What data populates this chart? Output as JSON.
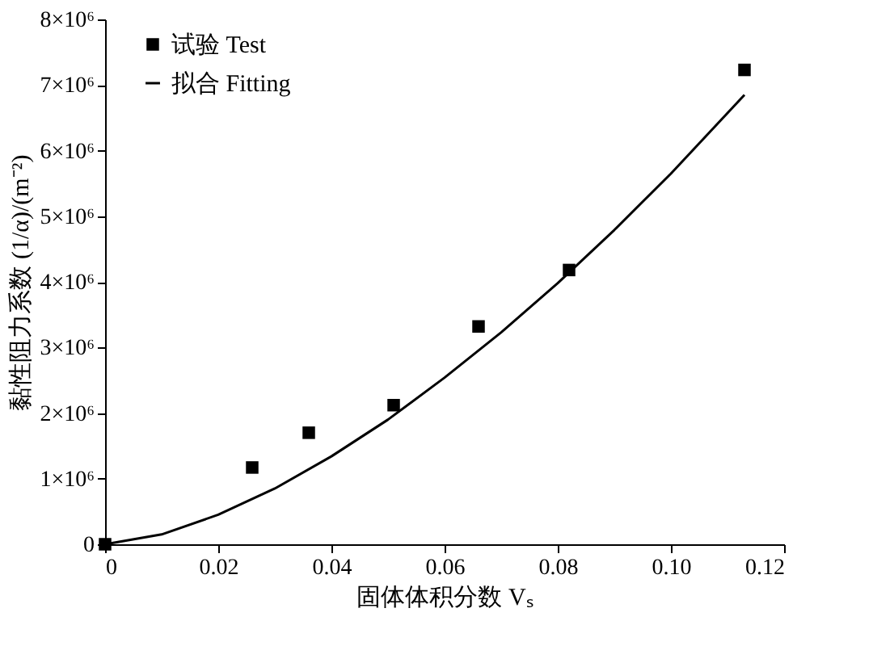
{
  "chart_data": {
    "type": "scatter",
    "xlabel": "固体体积分数 Vₛ",
    "ylabel": "黏性阻力系数 (1/α)/(m⁻²)",
    "xlim": [
      0,
      0.12
    ],
    "xticks": [
      0,
      0.02,
      0.04,
      0.06,
      0.08,
      {
        "value": 0.1,
        "label": "0.10"
      },
      0.12
    ],
    "ylim": [
      0,
      8000000
    ],
    "yticks": [
      0,
      {
        "value": 1000000,
        "label": "1×10⁶"
      },
      {
        "value": 2000000,
        "label": "2×10⁶"
      },
      {
        "value": 3000000,
        "label": "3×10⁶"
      },
      {
        "value": 4000000,
        "label": "4×10⁶"
      },
      {
        "value": 5000000,
        "label": "5×10⁶"
      },
      {
        "value": 6000000,
        "label": "6×10⁶"
      },
      {
        "value": 7000000,
        "label": "7×10⁶"
      },
      {
        "value": 8000000,
        "label": "8×10⁶"
      }
    ],
    "grid": false,
    "legend": "top left",
    "series": [
      {
        "name": "试验 Test",
        "marker": "square",
        "color": "#000000",
        "x": [
          0,
          0.026,
          0.036,
          0.051,
          0.066,
          0.082,
          0.113
        ],
        "values": [
          0,
          1170000,
          1700000,
          2120000,
          3320000,
          4180000,
          7230000
        ]
      },
      {
        "name": "拟合 Fitting",
        "type": "line",
        "marker": "none",
        "line_style": "solid",
        "color": "#000000",
        "x": [
          0,
          0.01,
          0.02,
          0.03,
          0.04,
          0.05,
          0.06,
          0.07,
          0.08,
          0.09,
          0.1,
          0.113
        ],
        "values": [
          0,
          150000,
          450000,
          850000,
          1340000,
          1900000,
          2540000,
          3230000,
          3980000,
          4790000,
          5650000,
          6850000
        ]
      }
    ]
  }
}
